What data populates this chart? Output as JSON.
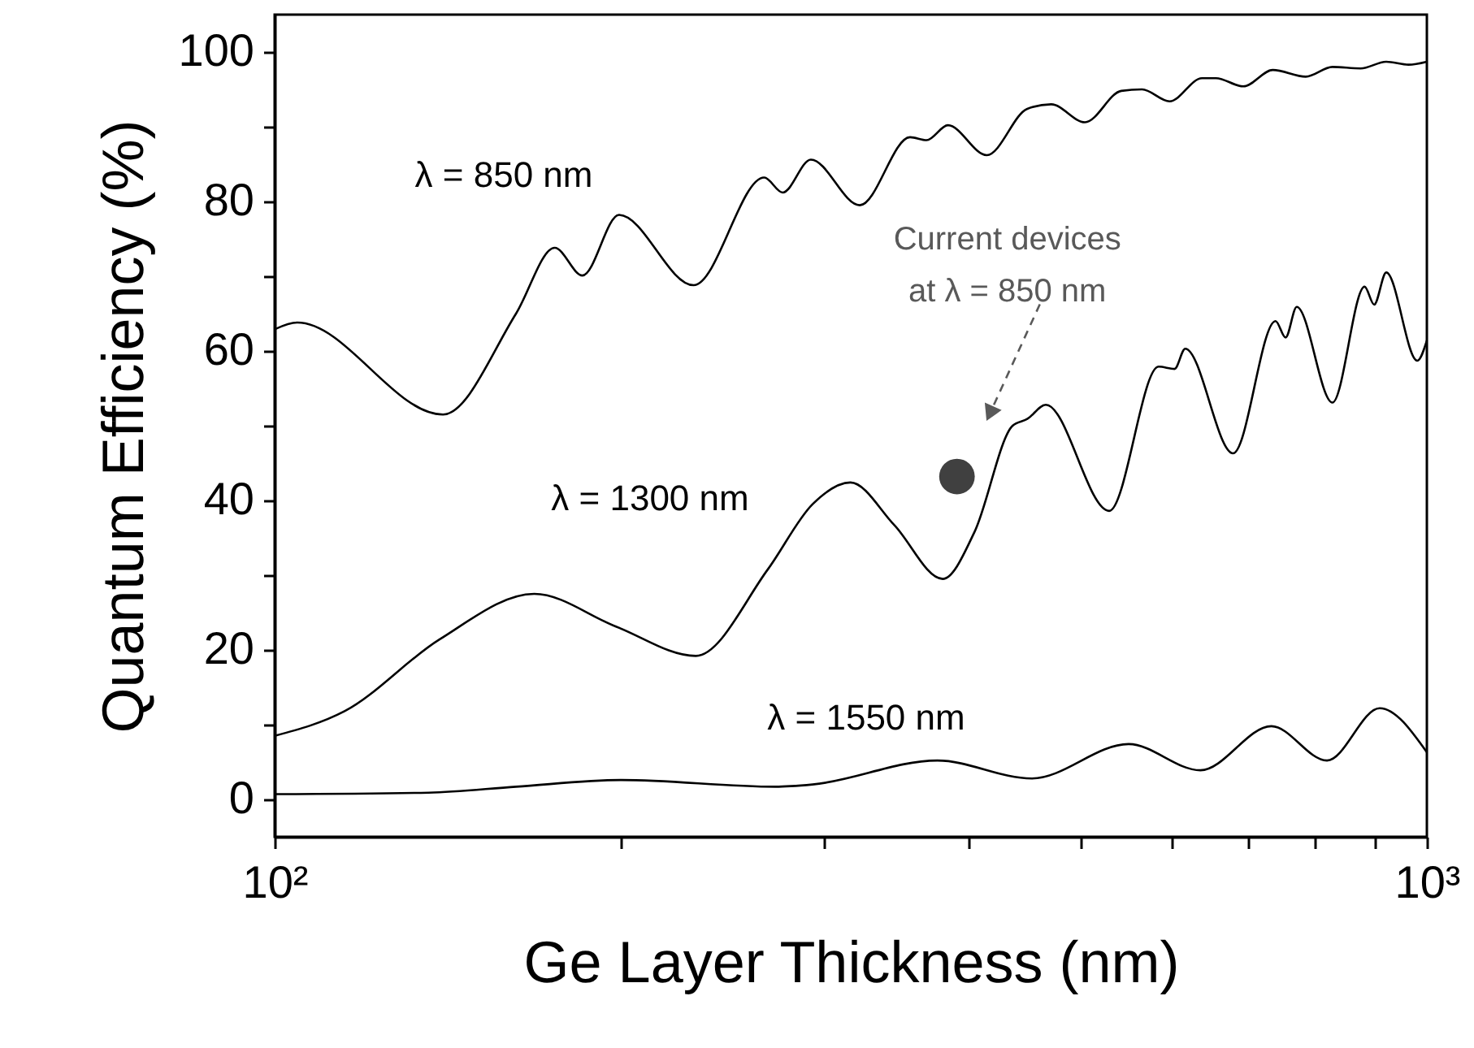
{
  "chart_data": {
    "type": "line",
    "xlabel": "Ge Layer Thickness (nm)",
    "ylabel": "Quantum Efficiency (%)",
    "log": "x",
    "xlim": [
      100,
      1000
    ],
    "ylim": [
      -5,
      105
    ],
    "xticks": [
      {
        "value": 100,
        "label": "10²"
      },
      {
        "value": 200,
        "label": null
      },
      {
        "value": 300,
        "label": null
      },
      {
        "value": 400,
        "label": null
      },
      {
        "value": 500,
        "label": null
      },
      {
        "value": 600,
        "label": null
      },
      {
        "value": 700,
        "label": null
      },
      {
        "value": 800,
        "label": null
      },
      {
        "value": 900,
        "label": null
      },
      {
        "value": 1000,
        "label": "10³"
      }
    ],
    "yticks": [
      0,
      {
        "value": 10,
        "label": null
      },
      20,
      {
        "value": 30,
        "label": null
      },
      40,
      {
        "value": 50,
        "label": null
      },
      60,
      {
        "value": 70,
        "label": null
      },
      80,
      {
        "value": 90,
        "label": null
      },
      100
    ],
    "grid": false,
    "marker": "none",
    "line_style": "solid",
    "series": [
      {
        "name": "λ = 850 nm",
        "color": "#000000",
        "x": [
          100,
          104.6,
          140,
          162,
          175,
          185,
          199,
          231,
          266,
          276,
          292,
          322,
          356,
          368,
          384,
          415,
          450,
          472,
          505,
          543,
          566,
          598,
          638,
          656,
          693,
          735,
          785,
          828,
          876,
          922,
          964,
          1000
        ],
        "values": [
          62.9,
          63.8,
          51.5,
          65,
          73.8,
          70.1,
          78.2,
          68.8,
          83.2,
          81.2,
          85.6,
          79.5,
          88.6,
          88.2,
          90.2,
          86.2,
          92.4,
          93.0,
          90.6,
          94.8,
          95.0,
          93.4,
          96.5,
          96.5,
          95.4,
          97.6,
          96.7,
          98.0,
          97.8,
          98.7,
          98.3,
          98.7
        ]
      },
      {
        "name": "λ = 1300 nm",
        "color": "#000000",
        "x": [
          100,
          115,
          139,
          168,
          198,
          232,
          268,
          293,
          316,
          345,
          380,
          405,
          437,
          450,
          467,
          530,
          585,
          604,
          617,
          679,
          739,
          754,
          771,
          828,
          883,
          900,
          922,
          981,
          1000
        ],
        "values": [
          8.5,
          11.8,
          21.4,
          27.5,
          23.1,
          19.2,
          30.8,
          39.5,
          42.4,
          36.7,
          29.5,
          35.8,
          50.0,
          50.9,
          52.8,
          38.6,
          57.9,
          57.6,
          60.3,
          46.3,
          64.0,
          61.8,
          65.9,
          53.1,
          68.6,
          66.2,
          70.5,
          58.7,
          61.4
        ]
      },
      {
        "name": "λ = 1550 nm",
        "color": "#000000",
        "x": [
          100,
          136,
          162,
          200,
          272,
          293,
          376,
          454,
          551,
          636,
          733,
          819,
          910,
          1000
        ],
        "values": [
          0.7,
          0.9,
          1.7,
          2.6,
          1.7,
          2.0,
          5.2,
          2.8,
          7.4,
          3.9,
          9.8,
          5.2,
          12.2,
          6.3
        ]
      },
      {
        "type": "scatter",
        "marker": "circle",
        "color": "#404040",
        "x": [
          391
        ],
        "values": [
          43.2
        ]
      }
    ],
    "annotations": [
      "Current devices\nat λ = 850 nm"
    ]
  }
}
